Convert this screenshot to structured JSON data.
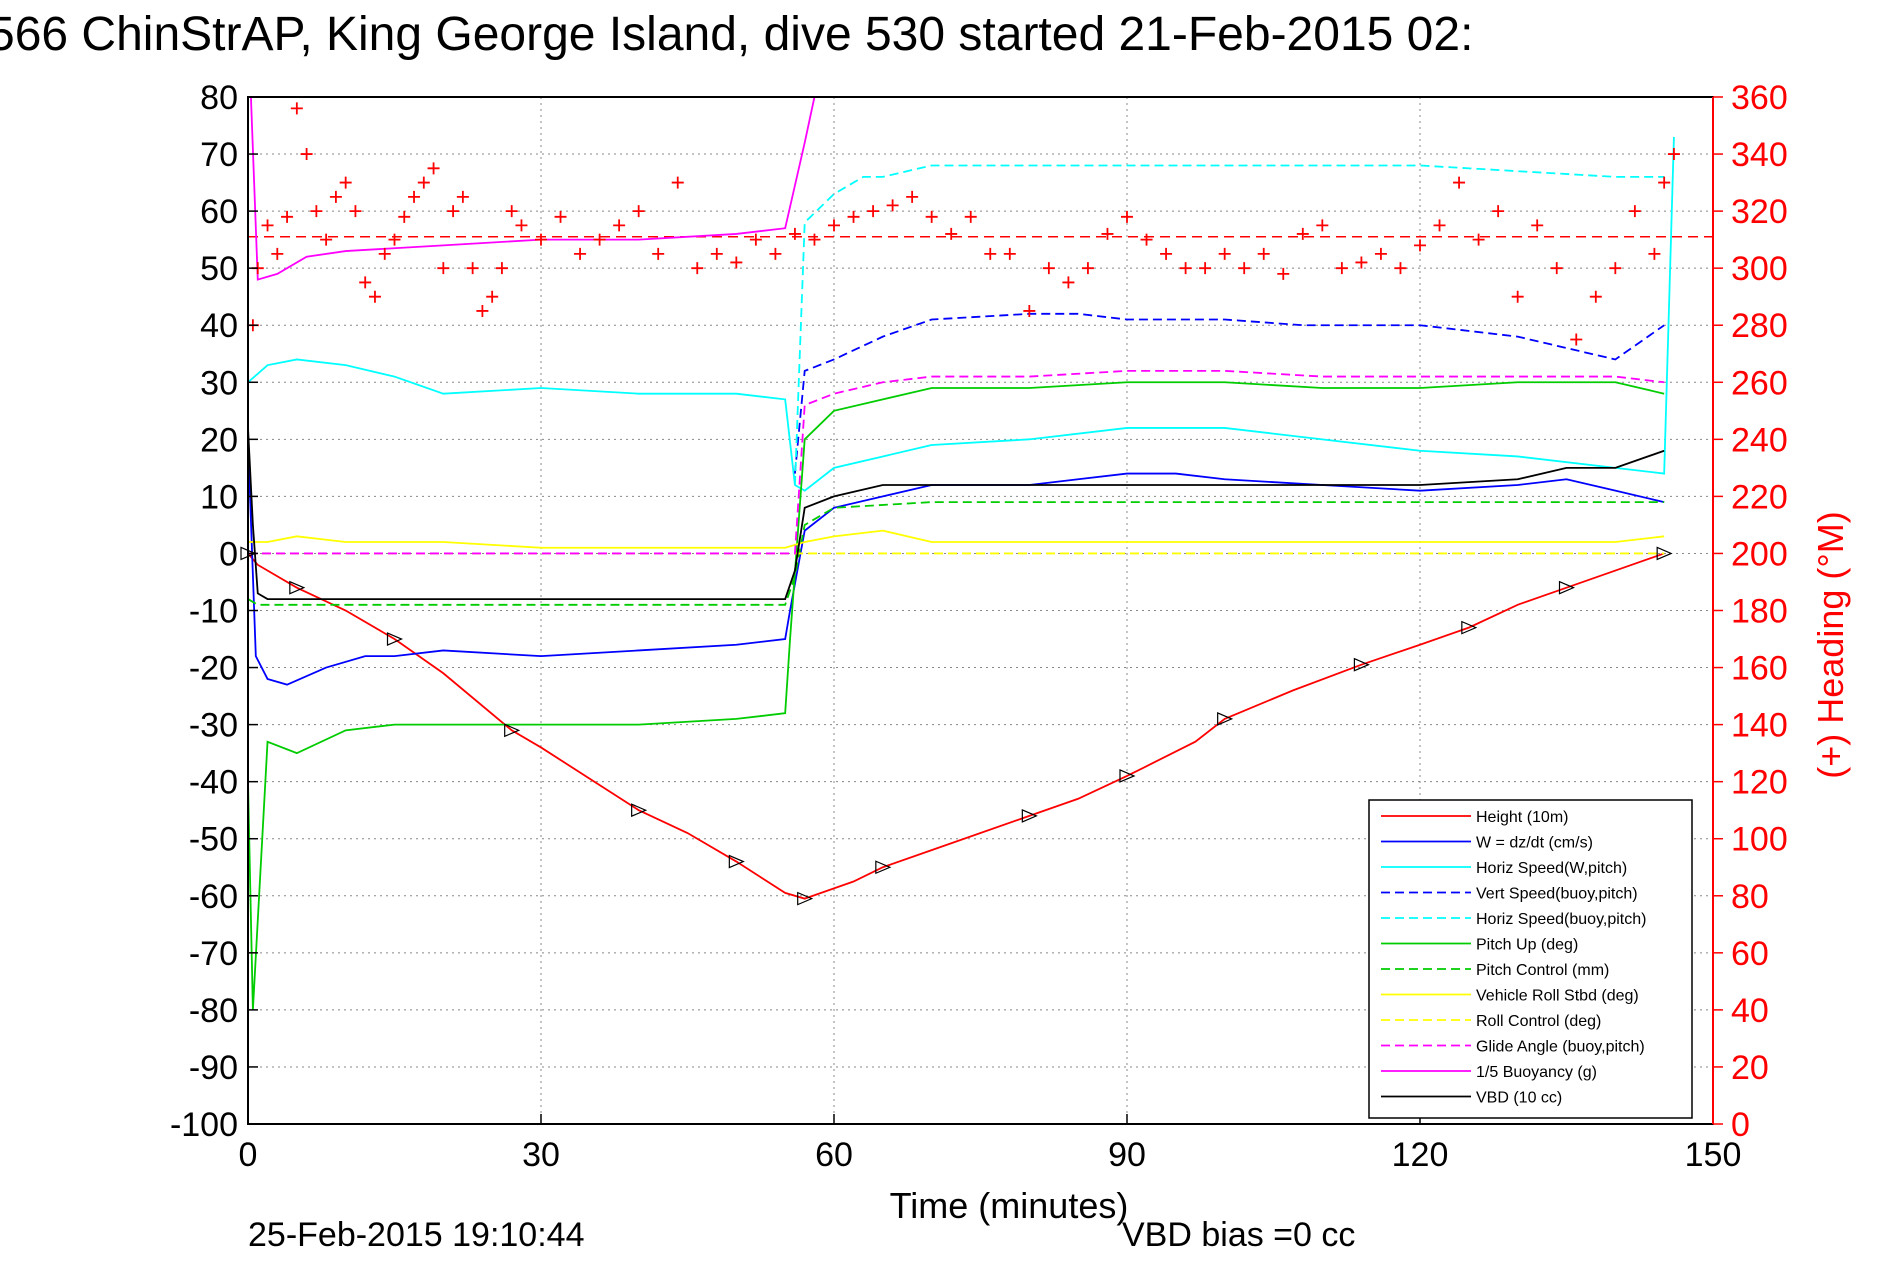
{
  "chart_data": {
    "type": "line",
    "title": "566 ChinStrAP, King George Island, dive 530 started 21-Feb-2015 02:",
    "xlabel": "Time (minutes)",
    "ylabel_right": "(+) Heading (°M)",
    "xlim": [
      0,
      150
    ],
    "ylim_left": [
      -100,
      80
    ],
    "ylim_right": [
      0,
      360
    ],
    "x_ticks": [
      0,
      30,
      60,
      90,
      120,
      150
    ],
    "y_ticks_left": [
      80,
      70,
      60,
      50,
      40,
      30,
      20,
      10,
      0,
      -10,
      -20,
      -30,
      -40,
      -50,
      -60,
      -70,
      -80,
      -90,
      -100
    ],
    "y_ticks_right": [
      360,
      340,
      320,
      300,
      280,
      260,
      240,
      220,
      200,
      180,
      160,
      140,
      120,
      100,
      80,
      60,
      40,
      20,
      0
    ],
    "grid": true,
    "legend_placement": "bottom-right",
    "footer_left": "25-Feb-2015 19:10:44",
    "footer_right": "VBD bias =0 cc",
    "reference_line_heading": 311,
    "series": [
      {
        "name": "Height (10m)",
        "color": "#ff0000",
        "style": "solid",
        "x": [
          0,
          1,
          5,
          10,
          15,
          20,
          27,
          30,
          40,
          45,
          50,
          55,
          57,
          62,
          65,
          70,
          80,
          85,
          90,
          97,
          100,
          107,
          114,
          120,
          125,
          130,
          135,
          140,
          145
        ],
        "y": [
          0,
          -2,
          -6,
          -10,
          -15,
          -21,
          -31,
          -34,
          -45,
          -49,
          -54,
          -59.5,
          -60.5,
          -57.5,
          -55,
          -52,
          -46,
          -43,
          -39,
          -33,
          -29,
          -24,
          -19.5,
          -16,
          -13,
          -9,
          -6,
          -3,
          0
        ]
      },
      {
        "name": "W = dz/dt (cm/s)",
        "color": "#0000ff",
        "style": "solid",
        "x": [
          0,
          0.8,
          2,
          4,
          8,
          12,
          15,
          20,
          30,
          40,
          50,
          55,
          55.5,
          57,
          60,
          65,
          70,
          80,
          85,
          90,
          95,
          100,
          110,
          120,
          130,
          135,
          140,
          145
        ],
        "y": [
          20,
          -18,
          -22,
          -23,
          -20,
          -18,
          -18,
          -17,
          -18,
          -17,
          -16,
          -15,
          -10,
          4,
          8,
          10,
          12,
          12,
          13,
          14,
          14,
          13,
          12,
          11,
          12,
          13,
          11,
          9
        ]
      },
      {
        "name": "Horiz Speed(W,pitch)",
        "color": "#00ffff",
        "style": "solid",
        "x": [
          0,
          2,
          5,
          10,
          15,
          20,
          30,
          40,
          50,
          55,
          56,
          57,
          60,
          65,
          70,
          80,
          90,
          100,
          110,
          120,
          130,
          140,
          145,
          146
        ],
        "y": [
          30,
          33,
          34,
          33,
          31,
          28,
          29,
          28,
          28,
          27,
          12,
          11,
          15,
          17,
          19,
          20,
          22,
          22,
          20,
          18,
          17,
          15,
          14,
          73
        ]
      },
      {
        "name": "Vert Speed(buoy,pitch)",
        "color": "#0000ff",
        "style": "dashed",
        "x": [
          56,
          57,
          60,
          65,
          70,
          80,
          85,
          90,
          96,
          100,
          108,
          116,
          120,
          130,
          135,
          140,
          145
        ],
        "y": [
          14,
          32,
          34,
          38,
          41,
          42,
          42,
          41,
          41,
          41,
          40,
          40,
          40,
          38,
          36,
          34,
          40
        ]
      },
      {
        "name": "Horiz Speed(buoy,pitch)",
        "color": "#00ffff",
        "style": "dashed",
        "x": [
          56,
          57,
          60,
          63,
          65,
          70,
          80,
          90,
          100,
          110,
          120,
          130,
          140,
          145
        ],
        "y": [
          12,
          58,
          63,
          66,
          66,
          68,
          68,
          68,
          68,
          68,
          68,
          67,
          66,
          66
        ]
      },
      {
        "name": "Pitch Up (deg)",
        "color": "#00cc00",
        "style": "solid",
        "x": [
          0,
          0.5,
          2,
          5,
          10,
          15,
          20,
          30,
          40,
          50,
          55,
          55.5,
          57,
          60,
          65,
          70,
          80,
          90,
          100,
          110,
          120,
          130,
          140,
          145
        ],
        "y": [
          -40,
          -80,
          -33,
          -35,
          -31,
          -30,
          -30,
          -30,
          -30,
          -29,
          -28,
          -15,
          20,
          25,
          27,
          29,
          29,
          30,
          30,
          29,
          29,
          30,
          30,
          28
        ]
      },
      {
        "name": "Pitch Control (mm)",
        "color": "#00cc00",
        "style": "dashed",
        "x": [
          0,
          1,
          55,
          56,
          57,
          60,
          70,
          80,
          90,
          100,
          110,
          120,
          130,
          140,
          145
        ],
        "y": [
          -8,
          -9,
          -9,
          -4,
          5,
          8,
          9,
          9,
          9,
          9,
          9,
          9,
          9,
          9,
          9
        ]
      },
      {
        "name": "Vehicle Roll Stbd (deg)",
        "color": "#ffff00",
        "style": "solid",
        "x": [
          0,
          2,
          5,
          10,
          20,
          30,
          40,
          50,
          55,
          57,
          60,
          65,
          70,
          80,
          90,
          100,
          110,
          120,
          130,
          140,
          145
        ],
        "y": [
          2,
          2,
          3,
          2,
          2,
          1,
          1,
          1,
          1,
          2,
          3,
          4,
          2,
          2,
          2,
          2,
          2,
          2,
          2,
          2,
          3
        ]
      },
      {
        "name": "Roll Control (deg)",
        "color": "#ffff00",
        "style": "dashed",
        "x": [
          0,
          145
        ],
        "y": [
          0,
          0
        ]
      },
      {
        "name": "Glide Angle (buoy,pitch)",
        "color": "#ff00ff",
        "style": "dashed",
        "x": [
          0,
          56,
          57,
          60,
          65,
          70,
          80,
          90,
          100,
          110,
          120,
          130,
          140,
          145
        ],
        "y": [
          0,
          0,
          26,
          28,
          30,
          31,
          31,
          32,
          32,
          31,
          31,
          31,
          31,
          30
        ]
      },
      {
        "name": "1/5 Buoyancy (g)",
        "color": "#ff00ff",
        "style": "solid",
        "x": [
          0.3,
          1,
          3,
          6,
          10,
          20,
          30,
          40,
          50,
          55,
          57,
          58
        ],
        "y": [
          80,
          48,
          49,
          52,
          53,
          54,
          55,
          55,
          56,
          57,
          72,
          80
        ]
      },
      {
        "name": "VBD (10 cc)",
        "color": "#000000",
        "style": "solid",
        "x": [
          0,
          0.5,
          1,
          2,
          55,
          56,
          57,
          60,
          65,
          70,
          80,
          90,
          100,
          110,
          120,
          130,
          135,
          140,
          145
        ],
        "y": [
          22,
          5,
          -7,
          -8,
          -8,
          -3,
          8,
          10,
          12,
          12,
          12,
          12,
          12,
          12,
          12,
          13,
          15,
          15,
          18
        ]
      }
    ],
    "heading_series": {
      "name": "(+) Heading",
      "color": "#ff0000",
      "marker": "+",
      "axis": "right",
      "x": [
        0.5,
        1,
        2,
        3,
        4,
        5,
        6,
        7,
        8,
        9,
        10,
        11,
        12,
        13,
        14,
        15,
        16,
        17,
        18,
        19,
        20,
        21,
        22,
        23,
        24,
        25,
        26,
        27,
        28,
        30,
        32,
        34,
        36,
        38,
        40,
        42,
        44,
        46,
        48,
        50,
        52,
        54,
        56,
        58,
        60,
        62,
        64,
        66,
        68,
        70,
        72,
        74,
        76,
        78,
        80,
        82,
        84,
        86,
        88,
        90,
        92,
        94,
        96,
        98,
        100,
        102,
        104,
        106,
        108,
        110,
        112,
        114,
        116,
        118,
        120,
        122,
        124,
        126,
        128,
        130,
        132,
        134,
        136,
        138,
        140,
        142,
        144,
        145,
        146
      ],
      "y": [
        280,
        300,
        315,
        305,
        318,
        356,
        340,
        320,
        310,
        325,
        330,
        320,
        295,
        290,
        305,
        310,
        318,
        325,
        330,
        335,
        300,
        320,
        325,
        300,
        285,
        290,
        300,
        320,
        315,
        310,
        318,
        305,
        310,
        315,
        320,
        305,
        330,
        300,
        305,
        302,
        310,
        305,
        312,
        310,
        315,
        318,
        320,
        322,
        325,
        318,
        312,
        318,
        305,
        305,
        285,
        300,
        295,
        300,
        312,
        318,
        310,
        305,
        300,
        300,
        305,
        300,
        305,
        298,
        312,
        315,
        300,
        302,
        305,
        300,
        308,
        315,
        330,
        310,
        320,
        290,
        315,
        300,
        275,
        290,
        300,
        320,
        305,
        330,
        340
      ]
    }
  }
}
